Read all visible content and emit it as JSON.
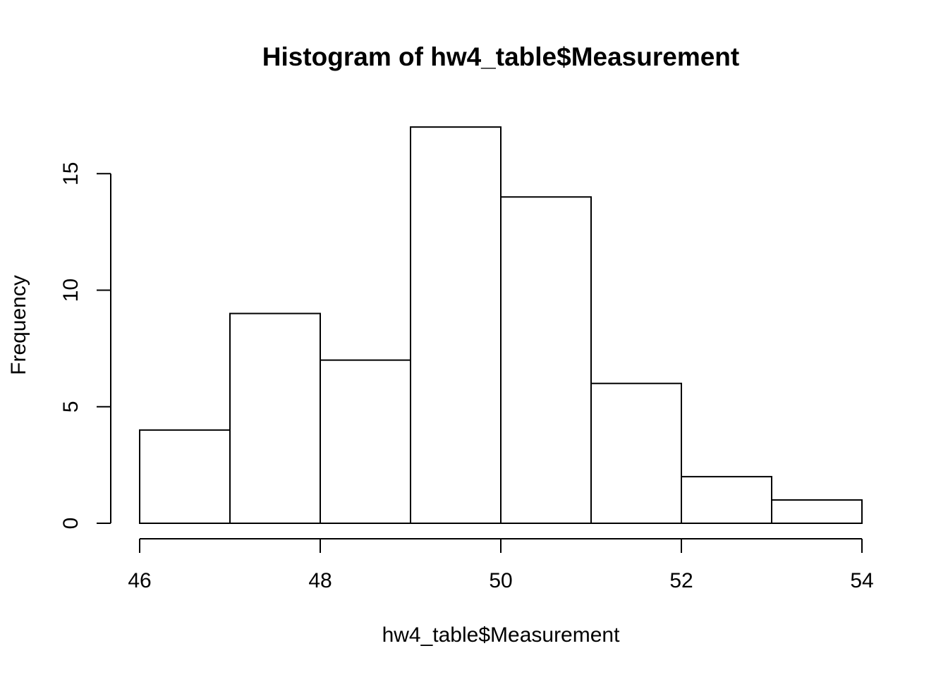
{
  "chart_data": {
    "type": "bar",
    "title": "Histogram of hw4_table$Measurement",
    "xlabel": "hw4_table$Measurement",
    "ylabel": "Frequency",
    "bins": [
      {
        "start": 46,
        "end": 47,
        "count": 4
      },
      {
        "start": 47,
        "end": 48,
        "count": 9
      },
      {
        "start": 48,
        "end": 49,
        "count": 7
      },
      {
        "start": 49,
        "end": 50,
        "count": 17
      },
      {
        "start": 50,
        "end": 51,
        "count": 14
      },
      {
        "start": 51,
        "end": 52,
        "count": 6
      },
      {
        "start": 52,
        "end": 53,
        "count": 2
      },
      {
        "start": 53,
        "end": 54,
        "count": 1
      }
    ],
    "xlim": [
      46,
      54
    ],
    "ylim": [
      0,
      17
    ],
    "x_ticks": [
      "46",
      "48",
      "50",
      "52",
      "54"
    ],
    "y_ticks": [
      "0",
      "5",
      "10",
      "15"
    ],
    "grid": false,
    "colors": {
      "bar_fill": "#ffffff",
      "bar_stroke": "#000000"
    }
  }
}
